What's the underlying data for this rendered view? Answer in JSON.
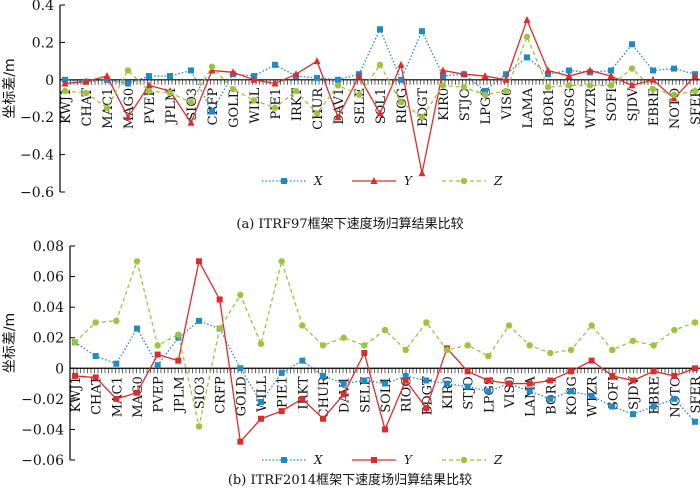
{
  "chart_data": [
    {
      "type": "line",
      "title": "(a) ITRF97框架下速度场归算结果比较",
      "xlabel": "",
      "ylabel": "坐标差/m",
      "ylim": [
        -0.6,
        0.4
      ],
      "yticks": [
        "0.4",
        "0.2",
        "0",
        "−0.2",
        "−0.4",
        "−0.6"
      ],
      "grid": false,
      "legend_position": "bottom-center",
      "categories": [
        "KWJ1",
        "CHAT",
        "MAC1",
        "MAG0",
        "PVEP",
        "JPLM",
        "SIO3",
        "CRFP",
        "GOLD",
        "WILL",
        "PIE1",
        "IRKT",
        "CHUR",
        "DAV1",
        "SELE",
        "SOL1",
        "RIOG",
        "BDGT",
        "KIR0",
        "STJO",
        "LPGS",
        "VIS0",
        "LAMA",
        "BOR1",
        "KOSG",
        "WTZR",
        "SOFI",
        "SJDV",
        "EBRE",
        "NOTO",
        "SFER"
      ],
      "series": [
        {
          "name": "X",
          "color": "#1f8ac8",
          "style": "dotted",
          "marker": "square",
          "values": [
            0.0,
            -0.01,
            0.0,
            -0.02,
            0.02,
            0.02,
            0.05,
            -0.17,
            0.03,
            0.02,
            0.08,
            0.02,
            0.01,
            0.0,
            0.03,
            0.27,
            0.0,
            0.26,
            0.02,
            0.03,
            -0.06,
            0.03,
            0.12,
            0.03,
            0.05,
            0.04,
            0.05,
            0.19,
            0.05,
            0.06,
            0.03
          ]
        },
        {
          "name": "Y",
          "color": "#e02b2b",
          "style": "solid",
          "marker": "triangle",
          "values": [
            -0.02,
            -0.01,
            0.02,
            -0.2,
            -0.03,
            -0.06,
            -0.23,
            0.05,
            0.04,
            0.0,
            -0.02,
            0.03,
            0.1,
            -0.2,
            0.02,
            -0.18,
            0.08,
            -0.5,
            0.05,
            0.03,
            0.02,
            0.0,
            0.32,
            0.05,
            0.02,
            0.05,
            0.02,
            -0.03,
            0.0,
            -0.1,
            0.02
          ]
        },
        {
          "name": "Z",
          "color": "#9bc53d",
          "style": "dashed",
          "marker": "circle",
          "values": [
            -0.06,
            -0.07,
            -0.15,
            0.05,
            -0.06,
            -0.07,
            -0.12,
            0.07,
            -0.05,
            -0.11,
            -0.15,
            -0.06,
            -0.18,
            -0.03,
            -0.08,
            0.08,
            -0.12,
            -0.2,
            -0.03,
            -0.04,
            -0.08,
            -0.06,
            0.23,
            -0.04,
            -0.03,
            -0.03,
            -0.03,
            0.06,
            -0.05,
            -0.08,
            -0.06
          ]
        }
      ]
    },
    {
      "type": "line",
      "title": "(b) ITRF2014框架下速度场归算结果比较",
      "xlabel": "",
      "ylabel": "坐标差/m",
      "ylim": [
        -0.06,
        0.08
      ],
      "yticks": [
        "0.08",
        "0.06",
        "0.04",
        "0.02",
        "0",
        "−0.02",
        "−0.04",
        "−0.06"
      ],
      "grid": false,
      "legend_position": "bottom-center",
      "categories": [
        "KWJ1",
        "CHAT",
        "MAC1",
        "MAG0",
        "PVEP",
        "JPLM",
        "SIO3",
        "CRFP",
        "GOLD",
        "WILL",
        "PIE1",
        "IRKT",
        "CHUR",
        "DAV1",
        "SELE",
        "SOL1",
        "RIOG",
        "BDGT",
        "KIR0",
        "STJO",
        "LPGS",
        "VIS0",
        "LAMA",
        "BOR1",
        "KOSG",
        "WTZR",
        "SOFI",
        "SJDV",
        "EBRE",
        "NOTO",
        "SFER"
      ],
      "series": [
        {
          "name": "X",
          "color": "#1f8ac8",
          "style": "dotted",
          "marker": "square",
          "values": [
            0.017,
            0.008,
            0.003,
            0.026,
            0.002,
            0.02,
            0.031,
            0.026,
            0.0,
            -0.022,
            -0.003,
            0.005,
            -0.005,
            -0.01,
            -0.008,
            -0.01,
            -0.005,
            -0.008,
            -0.01,
            -0.012,
            -0.015,
            -0.01,
            -0.015,
            -0.02,
            -0.015,
            -0.018,
            -0.025,
            -0.03,
            -0.025,
            -0.02,
            -0.035
          ]
        },
        {
          "name": "Y",
          "color": "#e02b2b",
          "style": "solid",
          "marker": "square",
          "values": [
            -0.005,
            -0.006,
            -0.02,
            -0.016,
            0.009,
            0.005,
            0.07,
            0.045,
            -0.048,
            -0.033,
            -0.028,
            -0.02,
            -0.033,
            -0.017,
            0.01,
            -0.04,
            -0.008,
            -0.026,
            0.013,
            -0.002,
            -0.008,
            -0.01,
            -0.01,
            -0.008,
            -0.002,
            0.005,
            -0.005,
            -0.008,
            -0.002,
            -0.005,
            0.0
          ]
        },
        {
          "name": "Z",
          "color": "#9bc53d",
          "style": "dashed",
          "marker": "circle",
          "values": [
            0.017,
            0.03,
            0.031,
            0.07,
            0.015,
            0.022,
            -0.038,
            0.026,
            0.048,
            0.016,
            0.07,
            0.028,
            0.015,
            0.02,
            0.015,
            0.025,
            0.012,
            0.03,
            0.012,
            0.015,
            0.008,
            0.028,
            0.015,
            0.01,
            0.012,
            0.028,
            0.012,
            0.018,
            0.015,
            0.025,
            0.03
          ]
        }
      ]
    }
  ],
  "figure": {
    "legend": {
      "x": "X",
      "y": "Y",
      "z": "Z"
    },
    "captions": {
      "a": "(a) ITRF97框架下速度场归算结果比较",
      "b": "(b) ITRF2014框架下速度场归算结果比较"
    }
  }
}
